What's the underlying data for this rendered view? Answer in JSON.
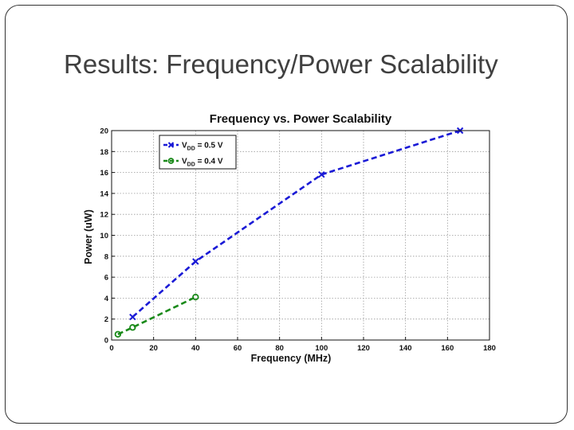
{
  "slide": {
    "title": "Results: Frequency/Power Scalability"
  },
  "chart_data": {
    "type": "line",
    "title": "Frequency vs. Power Scalability",
    "xlabel": "Frequency (MHz)",
    "ylabel": "Power (uW)",
    "xlim": [
      0,
      180
    ],
    "ylim": [
      0,
      20
    ],
    "xticks": [
      0,
      20,
      40,
      60,
      80,
      100,
      120,
      140,
      160,
      180
    ],
    "yticks": [
      0,
      2,
      4,
      6,
      8,
      10,
      12,
      14,
      16,
      18,
      20
    ],
    "grid": true,
    "legend_position": "top-left",
    "series": [
      {
        "name_prefix": "V",
        "name_subscript": "DD",
        "name_suffix": " = 0.5 V",
        "color": "#1a1ad6",
        "marker": "x",
        "line_style": "dashed",
        "x": [
          10,
          40,
          100,
          166
        ],
        "y": [
          2.2,
          7.5,
          15.8,
          20
        ]
      },
      {
        "name_prefix": "V",
        "name_subscript": "DD",
        "name_suffix": " = 0.4 V",
        "color": "#1a8a1a",
        "marker": "circle",
        "line_style": "dashed",
        "x": [
          3,
          10,
          40
        ],
        "y": [
          0.55,
          1.2,
          4.1
        ]
      }
    ]
  }
}
